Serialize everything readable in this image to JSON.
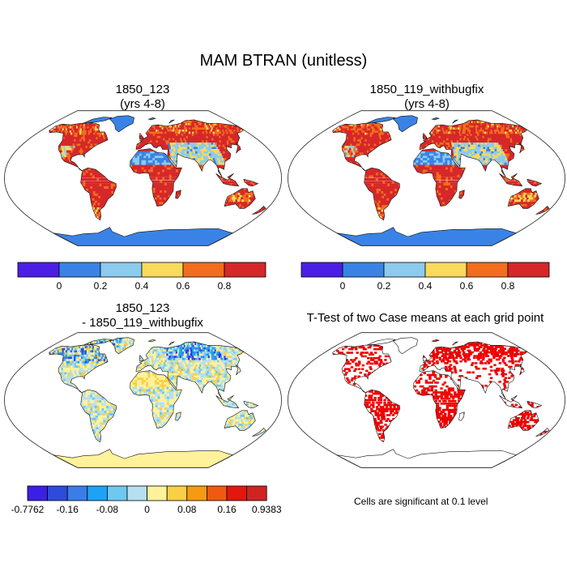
{
  "figure": {
    "title": "MAM BTRAN (unitless)"
  },
  "panels": [
    {
      "title_line1": "1850_123",
      "title_line2": "(yrs 4-8)"
    },
    {
      "title_line1": "1850_119_withbugfix",
      "title_line2": "(yrs 4-8)"
    },
    {
      "title_line1": "1850_123",
      "title_line2": "- 1850_119_withbugfix"
    },
    {
      "title_line1": "T-Test of two Case means at each grid point"
    }
  ],
  "colorbars": {
    "btran": {
      "colors": [
        "#4b1ee6",
        "#3a83e6",
        "#8ccbee",
        "#f9da5a",
        "#f26d1c",
        "#d6272a"
      ],
      "labels": [
        "0",
        "0.2",
        "0.4",
        "0.6",
        "0.8"
      ]
    },
    "diff": {
      "colors": [
        "#3b1fe6",
        "#2d4bdd",
        "#3b7de8",
        "#1ea2f5",
        "#6ec8f2",
        "#b6e0ef",
        "#fff29a",
        "#f9cf46",
        "#f59b12",
        "#f05a10",
        "#e4170e",
        "#cf2522"
      ],
      "labels": [
        "-0.7762",
        "-0.16",
        "-0.08",
        "0",
        "0.08",
        "0.16",
        "0.9383"
      ]
    }
  },
  "ttest": {
    "note": "Cells are significant at 0.1 level",
    "color": "#ee0000"
  }
}
